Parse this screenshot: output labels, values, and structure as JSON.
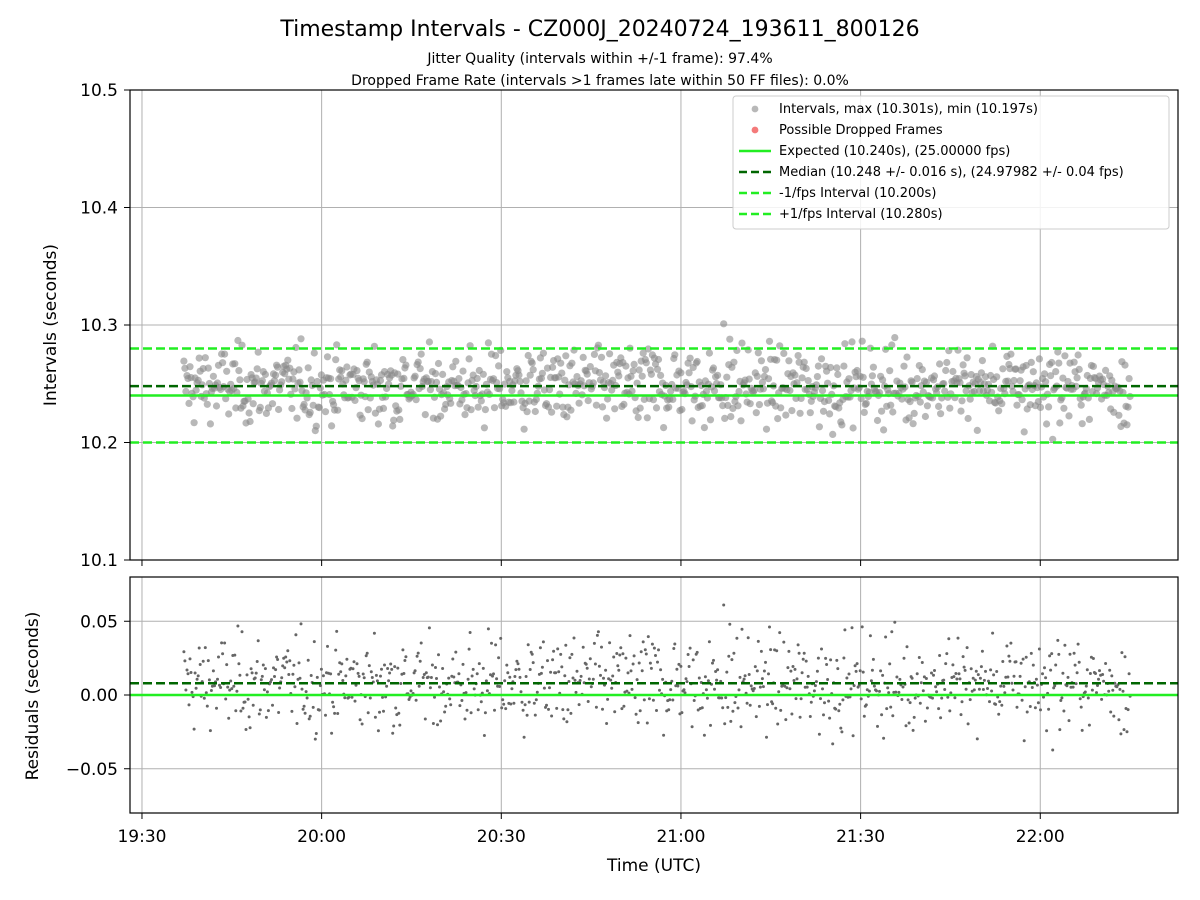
{
  "title": "Timestamp Intervals - CZ000J_20240724_193611_800126",
  "subtitle_jitter": "Jitter Quality (intervals within +/-1 frame): 97.4%",
  "subtitle_dropped": "Dropped Frame Rate (intervals >1 frames late within 50 FF files): 0.0%",
  "colors": {
    "points": "#888888",
    "dropped": "#ee3333",
    "expected": "#22ee22",
    "median": "#006600",
    "interval": "#22ee22",
    "grid": "#b0b0b0"
  },
  "chart_data": [
    {
      "type": "scatter",
      "ylabel": "Intervals (seconds)",
      "ylim": [
        10.1,
        10.5
      ],
      "yticks": [
        10.1,
        10.2,
        10.3,
        10.4,
        10.5
      ],
      "ytick_labels": [
        "10.1",
        "10.2",
        "10.3",
        "10.4",
        "10.5"
      ],
      "xlim": [
        "19:28",
        "22:23"
      ],
      "grid": true,
      "legend_position": "top-right",
      "x_start": "19:37",
      "x_end": "22:15",
      "point_count": 930,
      "max": 10.301,
      "min": 10.197,
      "series": [
        {
          "name": "Intervals, max (10.301s), min (10.197s)",
          "kind": "points"
        },
        {
          "name": "Possible Dropped Frames",
          "kind": "points",
          "values": []
        }
      ],
      "reference_lines": [
        {
          "name": "Expected (10.240s), (25.00000 fps)",
          "y": 10.24,
          "style": "solid"
        },
        {
          "name": "Median (10.248 +/- 0.016 s), (24.97982 +/- 0.04 fps)",
          "y": 10.248,
          "style": "dashed"
        },
        {
          "name": "-1/fps Interval (10.200s)",
          "y": 10.2,
          "style": "dashed"
        },
        {
          "name": "+1/fps Interval (10.280s)",
          "y": 10.28,
          "style": "dashed"
        }
      ]
    },
    {
      "type": "scatter",
      "ylabel": "Residuals (seconds)",
      "xlabel": "Time (UTC)",
      "ylim": [
        -0.08,
        0.08
      ],
      "yticks": [
        -0.05,
        0.0,
        0.05
      ],
      "ytick_labels": [
        "−0.05",
        "0.00",
        "0.05"
      ],
      "xticks": [
        "19:30",
        "20:00",
        "20:30",
        "21:00",
        "21:30",
        "22:00"
      ],
      "grid": true,
      "reference_lines": [
        {
          "y": 0.0,
          "style": "solid"
        },
        {
          "y": 0.008,
          "style": "dashed"
        }
      ]
    }
  ],
  "legend": {
    "items": [
      "Intervals, max (10.301s), min (10.197s)",
      "Possible Dropped Frames",
      "Expected (10.240s), (25.00000 fps)",
      "Median (10.248 +/- 0.016 s), (24.97982 +/- 0.04 fps)",
      "-1/fps Interval (10.200s)",
      "+1/fps Interval (10.280s)"
    ]
  }
}
